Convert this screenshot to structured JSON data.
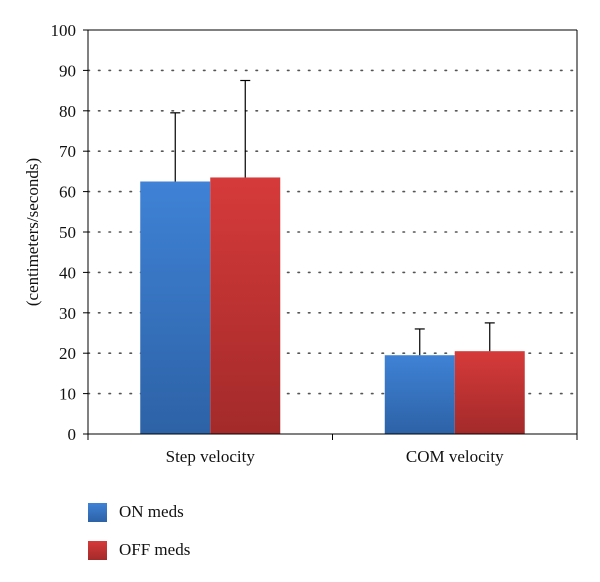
{
  "chart_data": {
    "type": "bar",
    "title": "",
    "xlabel": "",
    "ylabel": "(centimeters/seconds)",
    "ylim": [
      0,
      100
    ],
    "yticks": [
      0,
      10,
      20,
      30,
      40,
      50,
      60,
      70,
      80,
      90,
      100
    ],
    "categories": [
      "Step velocity",
      "COM velocity"
    ],
    "series": [
      {
        "name": "ON meds",
        "values": [
          62.5,
          19.5
        ],
        "errors": [
          17,
          6.5
        ],
        "color": "#3b7dcc"
      },
      {
        "name": "OFF meds",
        "values": [
          63.5,
          20.5
        ],
        "errors": [
          24,
          7
        ],
        "color": "#cc3535"
      }
    ],
    "grid": true,
    "legend_position": "bottom-left"
  }
}
